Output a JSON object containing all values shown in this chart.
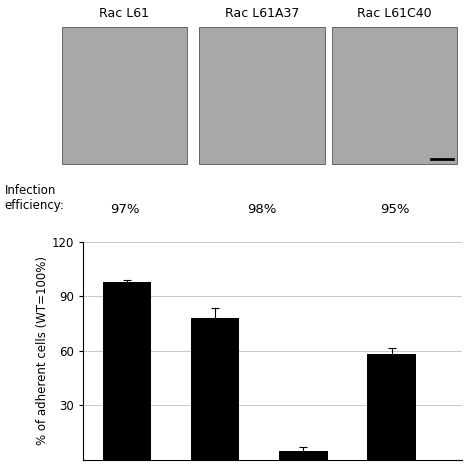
{
  "title_labels": [
    "Rac L61",
    "Rac L61A37",
    "Rac L61C40"
  ],
  "infection_label": "Infection\nefficiency:",
  "infection_values": [
    "97%",
    "98%",
    "95%"
  ],
  "bar_values": [
    98.0,
    78.0,
    5.0,
    58.0
  ],
  "bar_errors": [
    1.0,
    5.5,
    2.0,
    3.5
  ],
  "bar_color": "#000000",
  "ylabel": "% of adherent cells (WT=100%)",
  "ylim": [
    0,
    120
  ],
  "yticks": [
    30,
    60,
    90,
    120
  ],
  "bar_positions": [
    1,
    2,
    3,
    4
  ],
  "bar_width": 0.55,
  "grid_color": "#c8c8c8",
  "background_color": "#ffffff",
  "fig_width": 4.74,
  "fig_height": 4.74
}
